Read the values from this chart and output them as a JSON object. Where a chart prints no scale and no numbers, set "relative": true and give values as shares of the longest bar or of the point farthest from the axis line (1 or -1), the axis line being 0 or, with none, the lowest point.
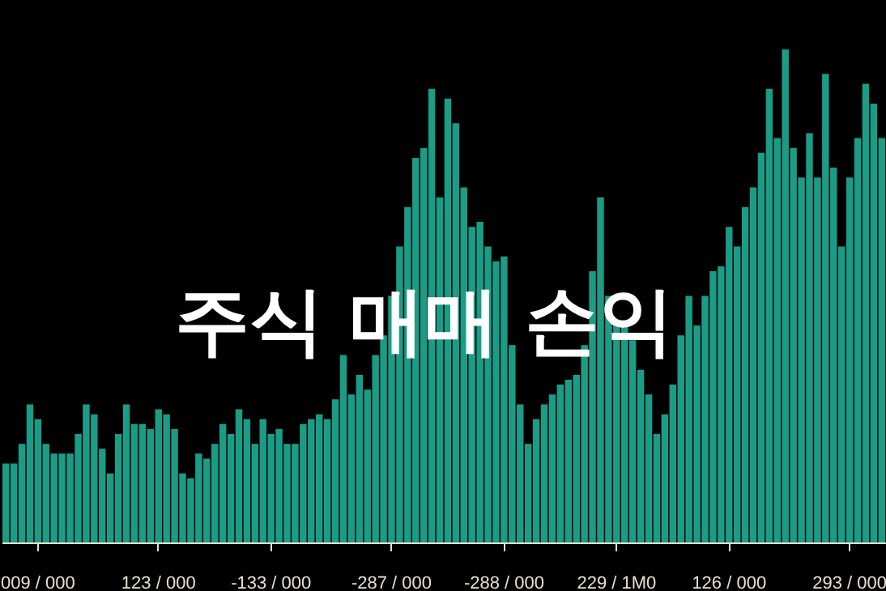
{
  "chart_data": {
    "type": "bar",
    "title": "주식 매매 손익",
    "relative": true,
    "color": "#1a9c86",
    "grid": false,
    "categories": [
      null,
      null,
      null,
      null,
      "009 / 000",
      null,
      null,
      null,
      null,
      null,
      null,
      null,
      null,
      null,
      null,
      null,
      null,
      null,
      null,
      "123 / 000",
      null,
      null,
      null,
      null,
      null,
      null,
      null,
      null,
      null,
      null,
      null,
      null,
      null,
      "-133 / 000",
      null,
      null,
      null,
      null,
      null,
      null,
      null,
      null,
      null,
      null,
      null,
      null,
      null,
      null,
      "-287 / 000",
      null,
      null,
      null,
      null,
      null,
      null,
      null,
      null,
      null,
      null,
      null,
      null,
      null,
      "-288 / 000",
      null,
      null,
      null,
      null,
      null,
      null,
      null,
      null,
      null,
      null,
      null,
      null,
      null,
      "229 / 1M0",
      null,
      null,
      null,
      null,
      null,
      null,
      null,
      null,
      null,
      null,
      null,
      null,
      null,
      "126 / 000",
      null,
      null,
      null,
      null,
      null,
      null,
      null,
      null,
      null,
      null,
      null,
      null,
      null,
      null,
      "293 / 000",
      null,
      null,
      null,
      null
    ],
    "values": [
      0.16,
      0.16,
      0.2,
      0.28,
      0.25,
      0.2,
      0.18,
      0.18,
      0.18,
      0.22,
      0.28,
      0.26,
      0.19,
      0.14,
      0.22,
      0.28,
      0.24,
      0.24,
      0.23,
      0.27,
      0.26,
      0.23,
      0.14,
      0.13,
      0.18,
      0.17,
      0.2,
      0.24,
      0.22,
      0.27,
      0.25,
      0.2,
      0.25,
      0.22,
      0.23,
      0.2,
      0.2,
      0.24,
      0.25,
      0.26,
      0.25,
      0.29,
      0.38,
      0.3,
      0.34,
      0.31,
      0.38,
      0.42,
      0.5,
      0.6,
      0.68,
      0.78,
      0.8,
      0.92,
      0.7,
      0.9,
      0.85,
      0.72,
      0.64,
      0.65,
      0.6,
      0.57,
      0.58,
      0.4,
      0.28,
      0.2,
      0.25,
      0.28,
      0.3,
      0.32,
      0.33,
      0.34,
      0.4,
      0.55,
      0.7,
      0.5,
      0.45,
      0.44,
      0.41,
      0.35,
      0.3,
      0.22,
      0.26,
      0.32,
      0.42,
      0.5,
      0.44,
      0.5,
      0.55,
      0.56,
      0.64,
      0.6,
      0.68,
      0.72,
      0.79,
      0.92,
      0.82,
      1.0,
      0.8,
      0.74,
      0.83,
      0.74,
      0.95,
      0.76,
      0.6,
      0.74,
      0.82,
      0.93,
      0.89,
      0.82
    ]
  }
}
